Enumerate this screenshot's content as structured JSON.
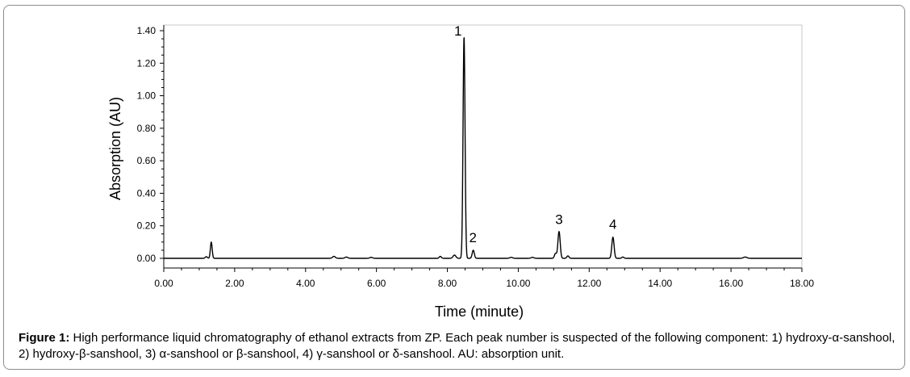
{
  "chart_data": {
    "type": "line",
    "title": "",
    "xlabel": "Time (minute)",
    "ylabel": "Absorption (AU)",
    "xlim": [
      0,
      18
    ],
    "ylim": [
      -0.05,
      1.42
    ],
    "grid": false,
    "x_ticks": [
      "0.00",
      "2.00",
      "4.00",
      "6.00",
      "8.00",
      "10.00",
      "12.00",
      "14.00",
      "16.00",
      "18.00"
    ],
    "y_ticks": [
      "0.00",
      "0.20",
      "0.40",
      "0.60",
      "0.80",
      "1.00",
      "1.20",
      "1.40"
    ],
    "baseline": 0.0,
    "peaks": [
      {
        "x": 1.34,
        "y": 0.1,
        "width": 0.025
      },
      {
        "x": 1.2,
        "y": 0.01,
        "width": 0.03
      },
      {
        "x": 4.8,
        "y": 0.012,
        "width": 0.04
      },
      {
        "x": 5.15,
        "y": 0.008,
        "width": 0.04
      },
      {
        "x": 5.85,
        "y": 0.006,
        "width": 0.04
      },
      {
        "x": 7.8,
        "y": 0.012,
        "width": 0.03
      },
      {
        "x": 8.2,
        "y": 0.02,
        "width": 0.04
      },
      {
        "x": 8.47,
        "y": 1.36,
        "width": 0.028
      },
      {
        "x": 8.73,
        "y": 0.05,
        "width": 0.03
      },
      {
        "x": 9.8,
        "y": 0.006,
        "width": 0.04
      },
      {
        "x": 10.4,
        "y": 0.006,
        "width": 0.04
      },
      {
        "x": 11.05,
        "y": 0.03,
        "width": 0.03
      },
      {
        "x": 11.15,
        "y": 0.165,
        "width": 0.032
      },
      {
        "x": 11.4,
        "y": 0.015,
        "width": 0.03
      },
      {
        "x": 12.67,
        "y": 0.13,
        "width": 0.032
      },
      {
        "x": 12.95,
        "y": 0.008,
        "width": 0.03
      },
      {
        "x": 16.4,
        "y": 0.008,
        "width": 0.05
      }
    ],
    "annotations": [
      {
        "text": "1",
        "x": 8.3,
        "y": 1.37
      },
      {
        "text": "2",
        "x": 8.72,
        "y": 0.1
      },
      {
        "text": "3",
        "x": 11.15,
        "y": 0.21
      },
      {
        "text": "4",
        "x": 12.67,
        "y": 0.18
      }
    ]
  },
  "caption": {
    "label": "Figure 1:",
    "text": " High performance liquid chromatography of ethanol extracts from ZP. Each peak number is suspected of the following component: 1) hydroxy-α-sanshool, 2) hydroxy-β-sanshool, 3) α-sanshool or β-sanshool, 4) γ-sanshool or δ-sanshool. AU: absorption unit."
  }
}
